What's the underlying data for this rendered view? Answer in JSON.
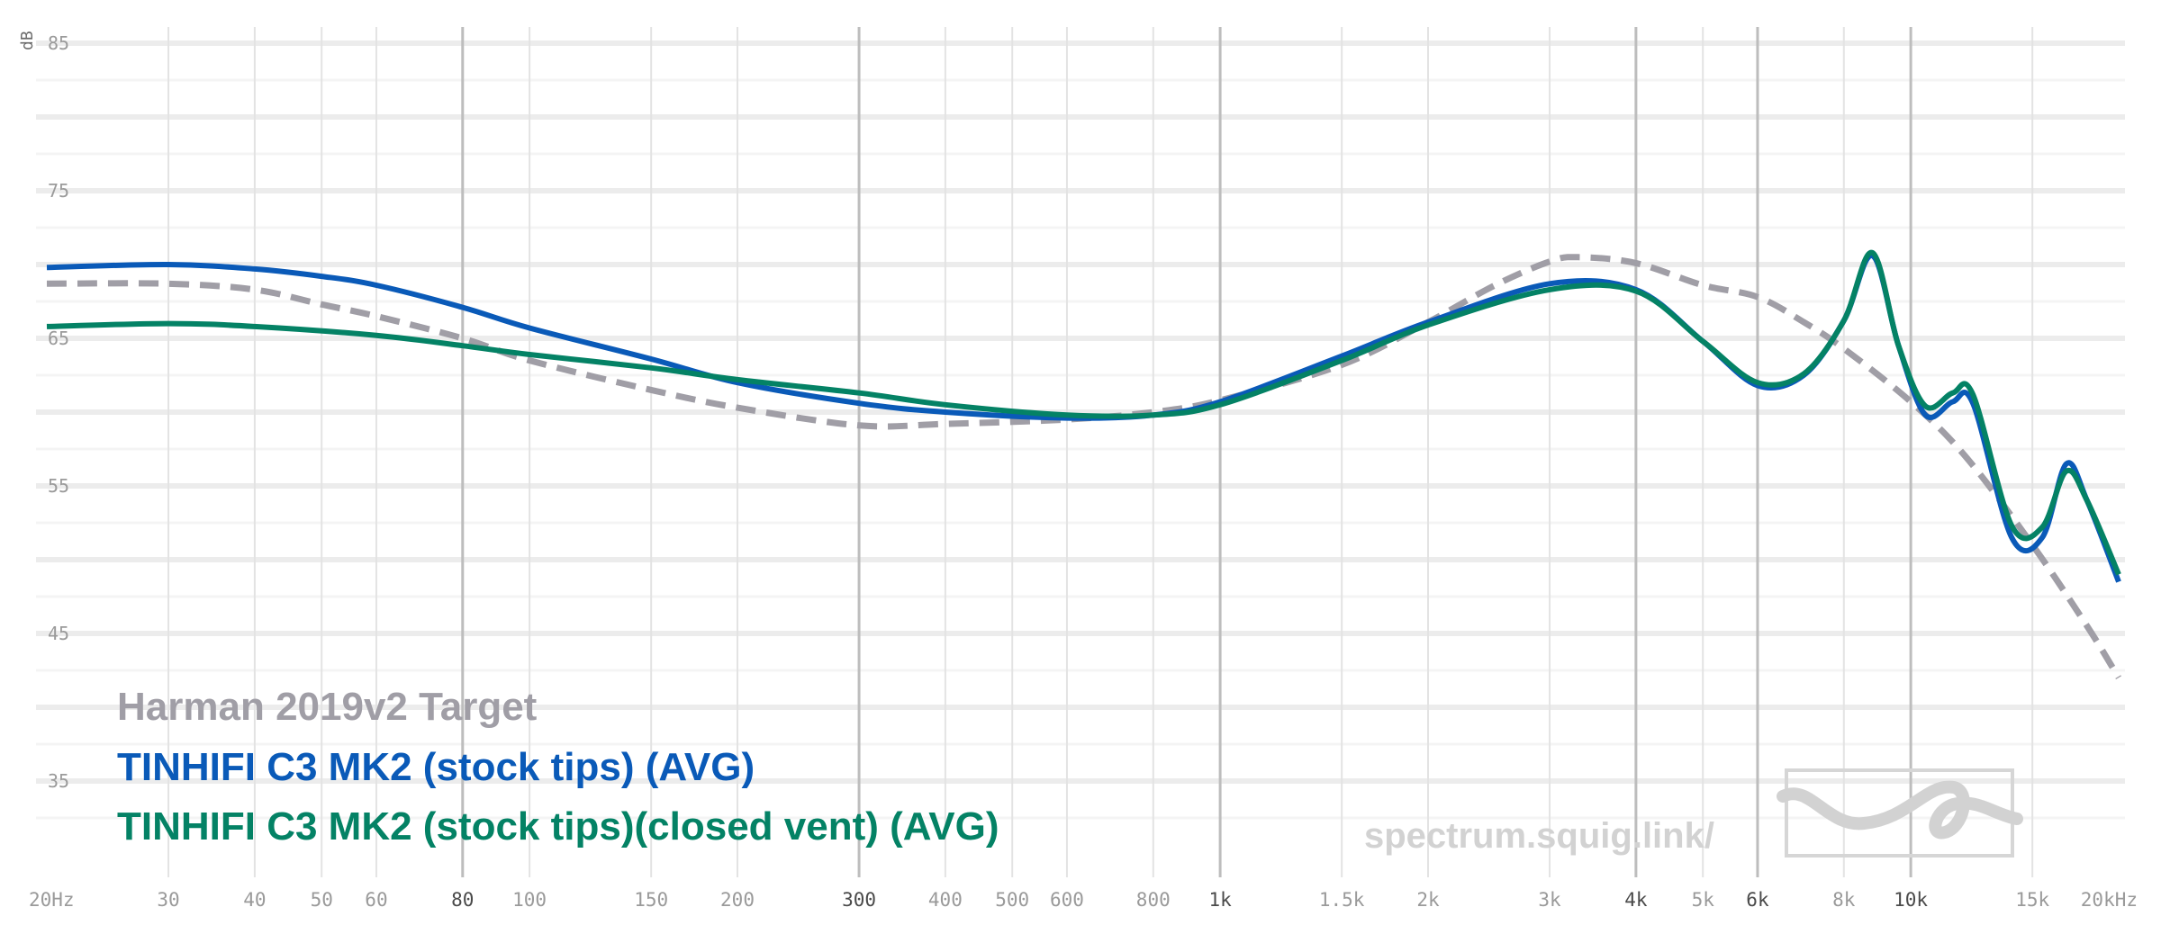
{
  "chart_data": {
    "type": "line",
    "title": "",
    "xlabel": "",
    "ylabel": "dB",
    "x_scale": "log",
    "xlim": [
      20,
      20000
    ],
    "ylim": [
      30,
      85
    ],
    "grid": true,
    "legend_position": "bottom-left",
    "y_ticks": [
      "85",
      "75",
      "65",
      "55",
      "45",
      "35"
    ],
    "y_tick_values": [
      85,
      75,
      65,
      55,
      45,
      35
    ],
    "x_ticks": [
      "20Hz",
      "30",
      "40",
      "50",
      "60",
      "80",
      "100",
      "150",
      "200",
      "300",
      "400",
      "500",
      "600",
      "800",
      "1k",
      "1.5k",
      "2k",
      "3k",
      "4k",
      "5k",
      "6k",
      "8k",
      "10k",
      "15k",
      "20kHz"
    ],
    "x_tick_values": [
      20,
      30,
      40,
      50,
      60,
      80,
      100,
      150,
      200,
      300,
      400,
      500,
      600,
      800,
      1000,
      1500,
      2000,
      3000,
      4000,
      5000,
      6000,
      8000,
      10000,
      15000,
      20000
    ],
    "x_major_ticks": [
      "80",
      "300",
      "1k",
      "4k",
      "6k",
      "10k"
    ],
    "series": [
      {
        "name": "Harman 2019v2 Target",
        "color": "#a09ea6",
        "style": "dashed",
        "points": [
          [
            20,
            68.7
          ],
          [
            30,
            68.7
          ],
          [
            40,
            68.3
          ],
          [
            50,
            67.3
          ],
          [
            60,
            66.5
          ],
          [
            80,
            65.0
          ],
          [
            100,
            63.5
          ],
          [
            150,
            61.5
          ],
          [
            200,
            60.3
          ],
          [
            300,
            59.1
          ],
          [
            400,
            59.2
          ],
          [
            600,
            59.5
          ],
          [
            800,
            60.0
          ],
          [
            1000,
            60.8
          ],
          [
            1500,
            63.2
          ],
          [
            2000,
            66.1
          ],
          [
            2500,
            68.6
          ],
          [
            3000,
            70.2
          ],
          [
            3300,
            70.5
          ],
          [
            4000,
            70.1
          ],
          [
            5000,
            68.6
          ],
          [
            6000,
            67.8
          ],
          [
            7000,
            66.1
          ],
          [
            8000,
            64.3
          ],
          [
            10000,
            60.7
          ],
          [
            12000,
            57.0
          ],
          [
            15000,
            51.0
          ],
          [
            18000,
            45.5
          ],
          [
            20000,
            42.0
          ]
        ]
      },
      {
        "name": "TINHIFI C3 MK2 (stock tips) (AVG)",
        "color": "#0a5ab8",
        "style": "solid",
        "points": [
          [
            20,
            69.8
          ],
          [
            30,
            70.0
          ],
          [
            40,
            69.7
          ],
          [
            50,
            69.2
          ],
          [
            60,
            68.6
          ],
          [
            80,
            67.1
          ],
          [
            100,
            65.7
          ],
          [
            150,
            63.6
          ],
          [
            200,
            62.0
          ],
          [
            300,
            60.6
          ],
          [
            400,
            60.0
          ],
          [
            600,
            59.6
          ],
          [
            800,
            59.8
          ],
          [
            1000,
            60.7
          ],
          [
            1500,
            63.8
          ],
          [
            2000,
            66.1
          ],
          [
            3000,
            68.7
          ],
          [
            4000,
            68.3
          ],
          [
            5000,
            64.8
          ],
          [
            6000,
            61.8
          ],
          [
            7000,
            62.5
          ],
          [
            8000,
            66.2
          ],
          [
            8800,
            70.6
          ],
          [
            9600,
            64.5
          ],
          [
            10500,
            59.8
          ],
          [
            11500,
            60.7
          ],
          [
            12300,
            60.6
          ],
          [
            14000,
            51.5
          ],
          [
            15500,
            51.5
          ],
          [
            16800,
            56.5
          ],
          [
            18000,
            54.0
          ],
          [
            20000,
            48.5
          ]
        ]
      },
      {
        "name": "TINHIFI C3 MK2 (stock tips)(closed vent) (AVG)",
        "color": "#048265",
        "style": "solid",
        "points": [
          [
            20,
            65.8
          ],
          [
            30,
            66.0
          ],
          [
            40,
            65.8
          ],
          [
            60,
            65.2
          ],
          [
            80,
            64.5
          ],
          [
            100,
            63.9
          ],
          [
            150,
            63.0
          ],
          [
            200,
            62.2
          ],
          [
            300,
            61.3
          ],
          [
            400,
            60.5
          ],
          [
            600,
            59.8
          ],
          [
            800,
            59.8
          ],
          [
            1000,
            60.5
          ],
          [
            1500,
            63.5
          ],
          [
            2000,
            65.9
          ],
          [
            3000,
            68.3
          ],
          [
            4000,
            68.2
          ],
          [
            5000,
            64.8
          ],
          [
            6000,
            62.0
          ],
          [
            7000,
            62.6
          ],
          [
            8000,
            66.2
          ],
          [
            8800,
            70.8
          ],
          [
            9600,
            64.5
          ],
          [
            10500,
            60.4
          ],
          [
            11500,
            61.3
          ],
          [
            12300,
            61.2
          ],
          [
            14000,
            52.3
          ],
          [
            15500,
            52.2
          ],
          [
            16800,
            56.0
          ],
          [
            18000,
            54.0
          ],
          [
            20000,
            49.0
          ]
        ]
      }
    ]
  },
  "legend": [
    "Harman 2019v2 Target",
    "TINHIFI C3 MK2 (stock tips) (AVG)",
    "TINHIFI C3 MK2 (stock tips)(closed vent) (AVG)"
  ],
  "watermark": "spectrum.squig.link/",
  "logo_icon": "squiggle-logo-icon"
}
